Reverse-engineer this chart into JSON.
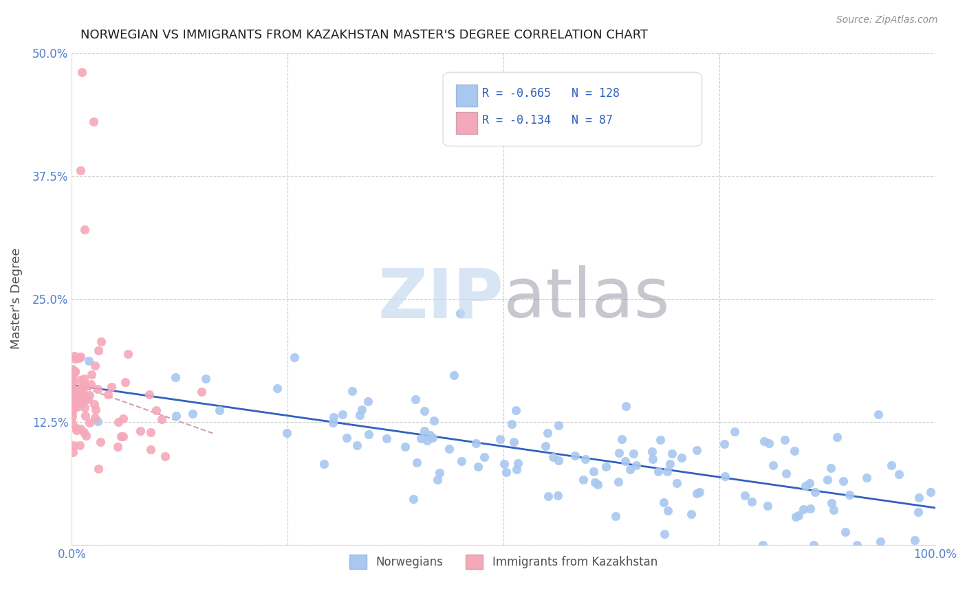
{
  "title": "NORWEGIAN VS IMMIGRANTS FROM KAZAKHSTAN MASTER'S DEGREE CORRELATION CHART",
  "source": "Source: ZipAtlas.com",
  "ylabel": "Master's Degree",
  "xlabel": "",
  "watermark": "ZIPatlas",
  "xlim": [
    0,
    1.0
  ],
  "ylim": [
    0,
    0.5
  ],
  "xticks": [
    0.0,
    0.25,
    0.5,
    0.75,
    1.0
  ],
  "xticklabels": [
    "0.0%",
    "",
    "",
    "",
    "100.0%"
  ],
  "yticks": [
    0.0,
    0.125,
    0.25,
    0.375,
    0.5
  ],
  "yticklabels": [
    "",
    "12.5%",
    "25.0%",
    "37.5%",
    "50.0%"
  ],
  "legend_labels": [
    "Norwegians",
    "Immigrants from Kazakhstan"
  ],
  "blue_R": -0.665,
  "blue_N": 128,
  "pink_R": -0.134,
  "pink_N": 87,
  "blue_color": "#a8c8f0",
  "pink_color": "#f5a8b8",
  "blue_line_color": "#3060c0",
  "pink_line_color": "#d0a0b0",
  "grid_color": "#cccccc",
  "title_color": "#202020",
  "axis_label_color": "#505050",
  "tick_color": "#5080d0",
  "source_color": "#909090",
  "watermark_color_ZIP": "#c8daf0",
  "watermark_color_atlas": "#9090a0",
  "background_color": "#ffffff",
  "blue_scatter_seed": 42,
  "pink_scatter_seed": 7
}
